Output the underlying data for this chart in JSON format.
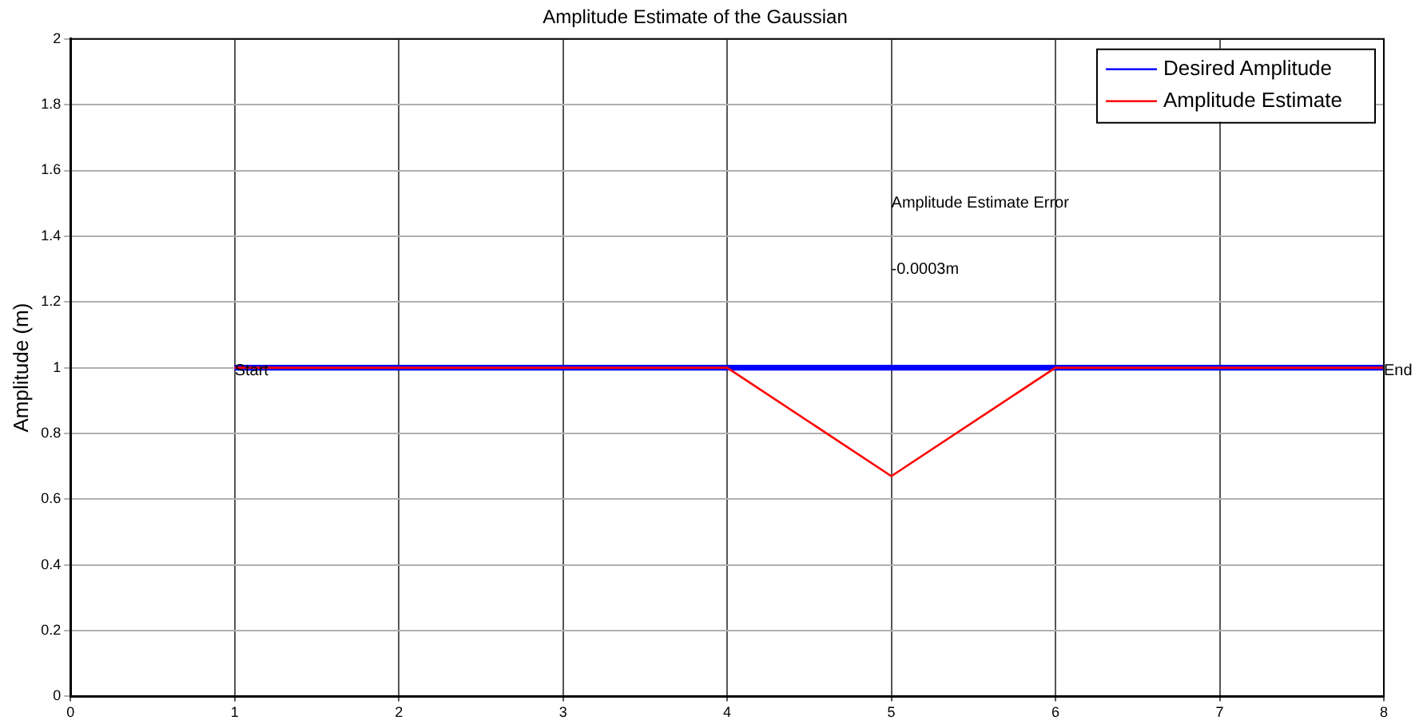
{
  "chart_data": {
    "type": "line",
    "title": "Amplitude Estimate of the Gaussian",
    "ylabel": "Amplitude (m)",
    "series": [
      {
        "name": "Desired Amplitude",
        "color": "#0000ff",
        "x": [
          1,
          2,
          3,
          4,
          5,
          6,
          7,
          8
        ],
        "values": [
          1,
          1,
          1,
          1,
          1,
          1,
          1,
          1
        ]
      },
      {
        "name": "Amplitude Estimate",
        "color": "#ff0000",
        "x": [
          1,
          4,
          5,
          6,
          8
        ],
        "values": [
          1,
          1,
          0.67,
          1,
          1
        ]
      }
    ],
    "xlim": [
      0,
      8
    ],
    "xticks": [
      0,
      1,
      2,
      3,
      4,
      5,
      6,
      7,
      8
    ],
    "ylim": [
      0,
      2
    ],
    "yticks": [
      0,
      0.2,
      0.4,
      0.6,
      0.8,
      1,
      1.2,
      1.4,
      1.6,
      1.8,
      2
    ],
    "grid": true,
    "legend": "top right",
    "marker": "none",
    "line_style": "solid",
    "annotations": [
      {
        "text": "Start",
        "x": 1,
        "y": 1
      },
      {
        "text": "End",
        "x": 8,
        "y": 1
      },
      "Amplitude Estimate Error",
      "-0.0003m"
    ]
  }
}
